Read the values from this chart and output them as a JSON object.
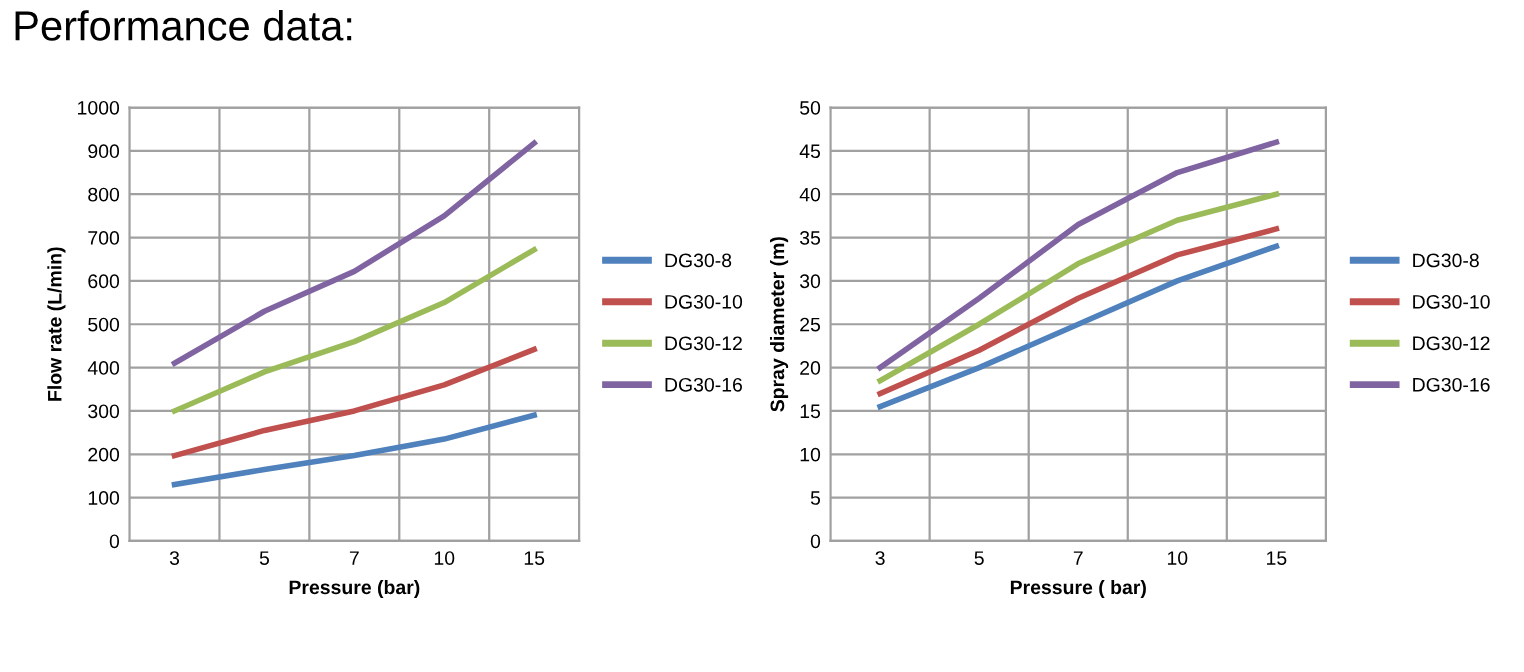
{
  "chart_data": [
    {
      "type": "line",
      "title": "Performance data:",
      "xlabel": "Pressure (bar)",
      "ylabel": "Flow rate (L/min)",
      "categories": [
        "3",
        "5",
        "7",
        "10",
        "15"
      ],
      "ylim": [
        0,
        1000
      ],
      "yticks": [
        0,
        100,
        200,
        300,
        400,
        500,
        600,
        700,
        800,
        900,
        1000
      ],
      "grid": true,
      "legend": "right",
      "marker": "none",
      "line_style": "solid",
      "series": [
        {
          "name": "DG30-8",
          "color": "#4f81bd",
          "values": [
            130,
            165,
            197,
            235,
            290
          ]
        },
        {
          "name": "DG30-10",
          "color": "#c0504d",
          "values": [
            197,
            255,
            300,
            360,
            442
          ]
        },
        {
          "name": "DG30-12",
          "color": "#9bbb59",
          "values": [
            300,
            390,
            460,
            550,
            672
          ]
        },
        {
          "name": "DG30-16",
          "color": "#8064a2",
          "values": [
            410,
            530,
            622,
            750,
            918
          ]
        }
      ]
    },
    {
      "type": "line",
      "xlabel": "Pressure ( bar)",
      "ylabel": "Spray diameter (m)",
      "categories": [
        "3",
        "5",
        "7",
        "10",
        "15"
      ],
      "ylim": [
        0,
        50
      ],
      "yticks": [
        0,
        5,
        10,
        15,
        20,
        25,
        30,
        35,
        40,
        45,
        50
      ],
      "grid": true,
      "legend": "right",
      "marker": "none",
      "line_style": "solid",
      "series": [
        {
          "name": "DG30-8",
          "color": "#4f81bd",
          "values": [
            15.5,
            20,
            25,
            30,
            34
          ]
        },
        {
          "name": "DG30-10",
          "color": "#c0504d",
          "values": [
            17,
            22,
            28,
            33,
            36
          ]
        },
        {
          "name": "DG30-12",
          "color": "#9bbb59",
          "values": [
            18.5,
            25,
            32,
            37,
            40
          ]
        },
        {
          "name": "DG30-16",
          "color": "#8064a2",
          "values": [
            20,
            28,
            36.5,
            42.5,
            46
          ]
        }
      ]
    }
  ]
}
